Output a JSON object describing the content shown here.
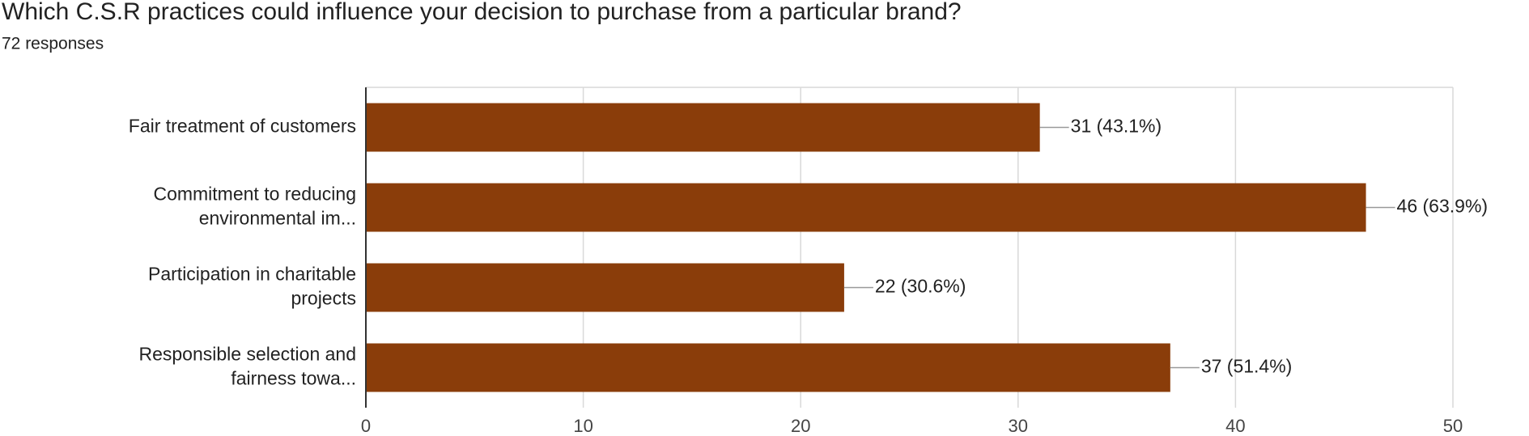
{
  "chart_data": {
    "type": "bar",
    "orientation": "horizontal",
    "title": "Which C.S.R practices could influence your decision to purchase from a particular brand?",
    "subtitle": "72 responses",
    "categories": [
      [
        "Fair treatment of customers"
      ],
      [
        "Commitment to reducing",
        "environmental im..."
      ],
      [
        "Participation in charitable",
        "projects"
      ],
      [
        "Responsible selection and",
        "fairness towa..."
      ]
    ],
    "values": [
      31,
      46,
      22,
      37
    ],
    "value_labels": [
      "31 (43.1%)",
      "46 (63.9%)",
      "22 (30.6%)",
      "37 (51.4%)"
    ],
    "color": "#8a3d0a",
    "xlim": [
      0,
      50
    ],
    "xticks": [
      0,
      10,
      20,
      30,
      40,
      50
    ],
    "grid": true
  }
}
